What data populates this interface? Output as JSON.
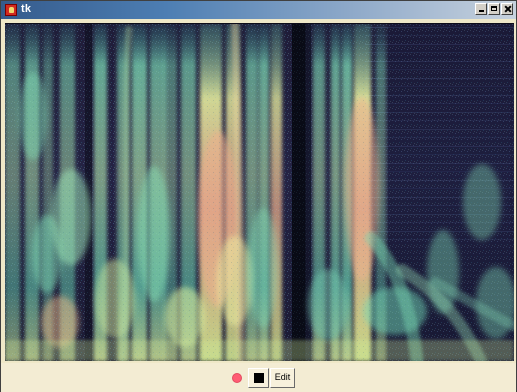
{
  "window": {
    "title": "tk",
    "icon": "tk-feather-icon",
    "controls": [
      "minimize-icon",
      "maximize-icon",
      "close-icon"
    ]
  },
  "spectrogram": {
    "colormap": [
      "#1b1b35",
      "#2f315e",
      "#3f6f91",
      "#74e0bc",
      "#e8f2a6",
      "#f0b38d"
    ]
  },
  "toolbar": {
    "record_icon": "record-icon",
    "stop_icon": "stop-icon",
    "edit_label": "Edit"
  },
  "colors": {
    "title_gradient_start": "#355b8c",
    "title_gradient_end": "#c7d2de",
    "record": "#ff5c73",
    "toolbar_bg": "#f3ecd3"
  }
}
